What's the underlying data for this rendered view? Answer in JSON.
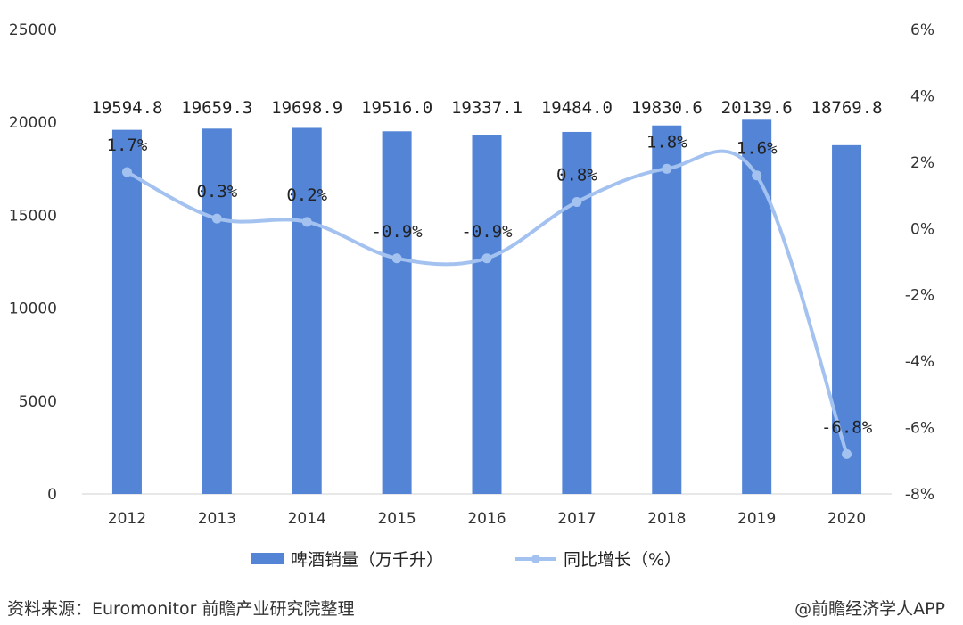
{
  "chart_data": {
    "type": "bar",
    "categories": [
      "2012",
      "2013",
      "2014",
      "2015",
      "2016",
      "2017",
      "2018",
      "2019",
      "2020"
    ],
    "series": [
      {
        "name": "啤酒销量（万千升）",
        "type": "bar",
        "axis": "left",
        "values": [
          19594.8,
          19659.3,
          19698.9,
          19516.0,
          19337.1,
          19484.0,
          19830.6,
          20139.6,
          18769.8
        ],
        "labels": [
          "19594.8",
          "19659.3",
          "19698.9",
          "19516.0",
          "19337.1",
          "19484.0",
          "19830.6",
          "20139.6",
          "18769.8"
        ],
        "color": "#5384d6"
      },
      {
        "name": "同比增长（%）",
        "type": "line",
        "axis": "right",
        "values": [
          1.7,
          0.3,
          0.2,
          -0.9,
          -0.9,
          0.8,
          1.8,
          1.6,
          -6.8
        ],
        "labels": [
          "1.7%",
          "0.3%",
          "0.2%",
          "-0.9%",
          "-0.9%",
          "0.8%",
          "1.8%",
          "1.6%",
          "-6.8%"
        ],
        "color": "#a4c2f0"
      }
    ],
    "y_left": {
      "range": [
        0,
        25000
      ],
      "ticks": [
        "0",
        "5000",
        "10000",
        "15000",
        "20000",
        "25000"
      ]
    },
    "y_right": {
      "range": [
        -8,
        6
      ],
      "ticks": [
        "-8%",
        "-6%",
        "-4%",
        "-2%",
        "0%",
        "2%",
        "4%",
        "6%"
      ]
    },
    "legend": "bottom",
    "grid": false
  },
  "footer": {
    "source": "资料来源：Euromonitor 前瞻产业研究院整理",
    "credit": "@前瞻经济学人APP"
  }
}
